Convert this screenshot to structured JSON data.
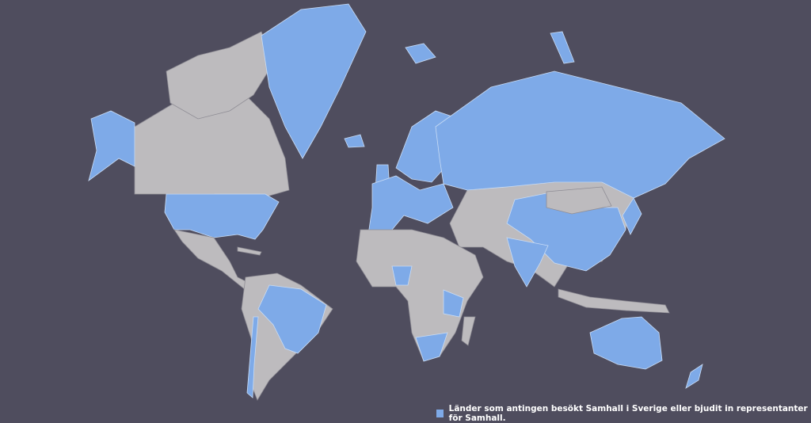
{
  "colors": {
    "background": "#4f4d5e",
    "visited": "#7eaae8",
    "other": "#bdbbbe"
  },
  "legend": {
    "label": "Länder som antingen besökt Samhall i Sverige eller bjudit in representanter för Samhall."
  }
}
